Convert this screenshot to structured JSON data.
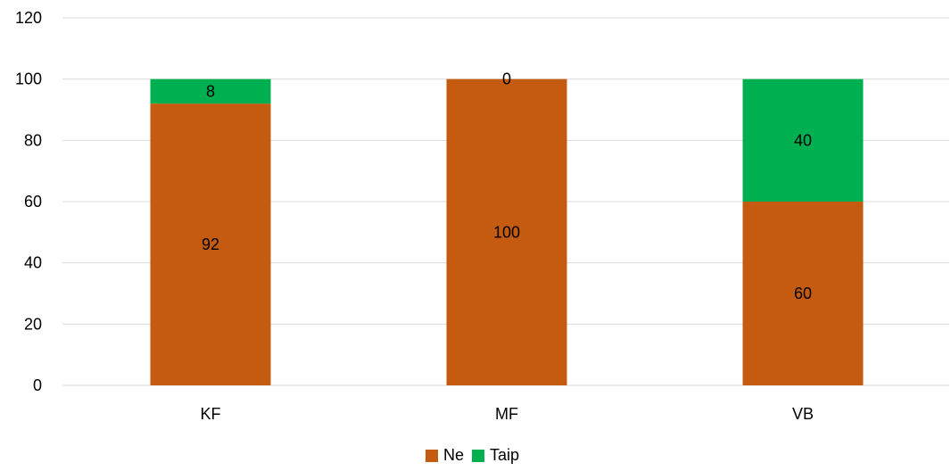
{
  "chart_data": {
    "type": "bar",
    "stacked": true,
    "categories": [
      "KF",
      "MF",
      "VB"
    ],
    "series": [
      {
        "name": "Ne",
        "values": [
          92,
          100,
          60
        ],
        "color": "#c55a11"
      },
      {
        "name": "Taip",
        "values": [
          8,
          0,
          40
        ],
        "color": "#00b050"
      }
    ],
    "ylim": [
      0,
      120
    ],
    "yticks": [
      0,
      20,
      40,
      60,
      80,
      100,
      120
    ],
    "grid": true,
    "legend_position": "bottom",
    "title": "",
    "xlabel": "",
    "ylabel": ""
  }
}
